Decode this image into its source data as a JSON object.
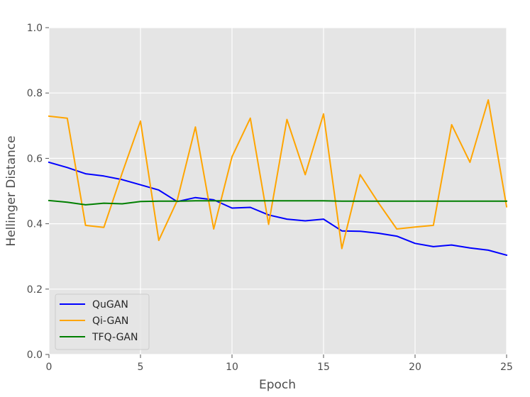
{
  "chart_data": {
    "type": "line",
    "title": "",
    "xlabel": "Epoch",
    "ylabel": "Hellinger Distance",
    "xlim": [
      0,
      25
    ],
    "ylim": [
      0.0,
      1.0
    ],
    "xticks": [
      0,
      5,
      10,
      15,
      20,
      25
    ],
    "yticks": [
      0.0,
      0.2,
      0.4,
      0.6,
      0.8,
      1.0
    ],
    "xtick_labels": [
      "0",
      "5",
      "10",
      "15",
      "20",
      "25"
    ],
    "ytick_labels": [
      "0.0",
      "0.2",
      "0.4",
      "0.6",
      "0.8",
      "1.0"
    ],
    "grid": true,
    "legend_position": "lower-left",
    "x": [
      0,
      1,
      2,
      3,
      4,
      5,
      6,
      7,
      8,
      9,
      10,
      11,
      12,
      13,
      14,
      15,
      16,
      17,
      18,
      19,
      20,
      21,
      22,
      23,
      24,
      25
    ],
    "series": [
      {
        "name": "QuGAN",
        "color": "#0000ff",
        "values": [
          0.588,
          0.572,
          0.553,
          0.546,
          0.535,
          0.519,
          0.503,
          0.468,
          0.48,
          0.473,
          0.448,
          0.45,
          0.427,
          0.414,
          0.409,
          0.414,
          0.378,
          0.377,
          0.371,
          0.362,
          0.34,
          0.33,
          0.335,
          0.326,
          0.319,
          0.304
        ]
      },
      {
        "name": "Qi-GAN",
        "color": "#ffa500",
        "values": [
          0.729,
          0.723,
          0.395,
          0.389,
          0.555,
          0.714,
          0.349,
          0.47,
          0.696,
          0.384,
          0.605,
          0.723,
          0.398,
          0.719,
          0.55,
          0.736,
          0.324,
          0.55,
          0.464,
          0.384,
          0.39,
          0.395,
          0.703,
          0.588,
          0.779,
          0.452
        ]
      },
      {
        "name": "TFQ-GAN",
        "color": "#007f00",
        "values": [
          0.471,
          0.466,
          0.458,
          0.463,
          0.461,
          0.468,
          0.469,
          0.469,
          0.47,
          0.47,
          0.47,
          0.47,
          0.47,
          0.47,
          0.47,
          0.47,
          0.469,
          0.469,
          0.469,
          0.469,
          0.469,
          0.469,
          0.469,
          0.469,
          0.469,
          0.469
        ]
      }
    ]
  }
}
